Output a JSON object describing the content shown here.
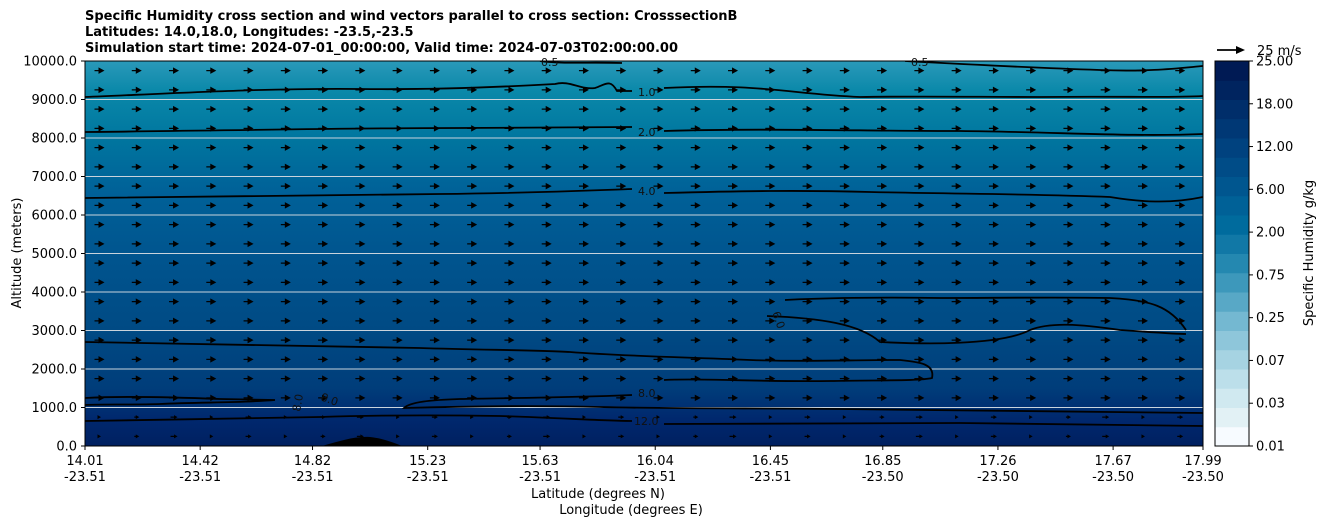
{
  "chart_data": {
    "type": "contourf",
    "title_lines": [
      "Specific Humidity cross section and wind vectors parallel to cross section: CrosssectionB",
      "Latitudes: 14.0,18.0, Longitudes: -23.5,-23.5",
      "Simulation start time: 2024-07-01_00:00:00, Valid time: 2024-07-03T02:00:00.00"
    ],
    "ylabel": "Altitude (meters)",
    "xlabel_lat": "Latitude (degrees N)",
    "xlabel_lon": "Longitude (degrees E)",
    "ylim": [
      0,
      10000
    ],
    "yticks": [
      "0.0",
      "1000.0",
      "2000.0",
      "3000.0",
      "4000.0",
      "5000.0",
      "6000.0",
      "7000.0",
      "8000.0",
      "9000.0",
      "10000.0"
    ],
    "xticks_lat": [
      "14.01",
      "14.42",
      "14.82",
      "15.23",
      "15.63",
      "16.04",
      "16.45",
      "16.85",
      "17.26",
      "17.67",
      "17.99"
    ],
    "xticks_lon": [
      "-23.51",
      "-23.51",
      "-23.51",
      "-23.51",
      "-23.51",
      "-23.51",
      "-23.51",
      "-23.50",
      "-23.50",
      "-23.50",
      "-23.50"
    ],
    "colorbar": {
      "label": "Specific Humidity g/kg",
      "tick_labels": [
        "0.01",
        "0.03",
        "0.07",
        "0.25",
        "0.75",
        "2.00",
        "6.00",
        "12.00",
        "18.00",
        "25.00"
      ]
    },
    "quiver_key": "25 m/s",
    "contour_labels": [
      "0.5",
      "0.5",
      "1.0",
      "2.0",
      "4.0",
      "6.0",
      "8.0",
      "8.0",
      "8.0",
      "12.0"
    ],
    "wind": {
      "direction": "parallel to section, eastward/northward",
      "typical_speed_ms": 8
    },
    "terrain_peak_m": 200,
    "colors": {
      "band_0": "#dbeef3",
      "band_1": "#003a75",
      "grid": "#c9d3dc",
      "contour": "#000000"
    }
  }
}
